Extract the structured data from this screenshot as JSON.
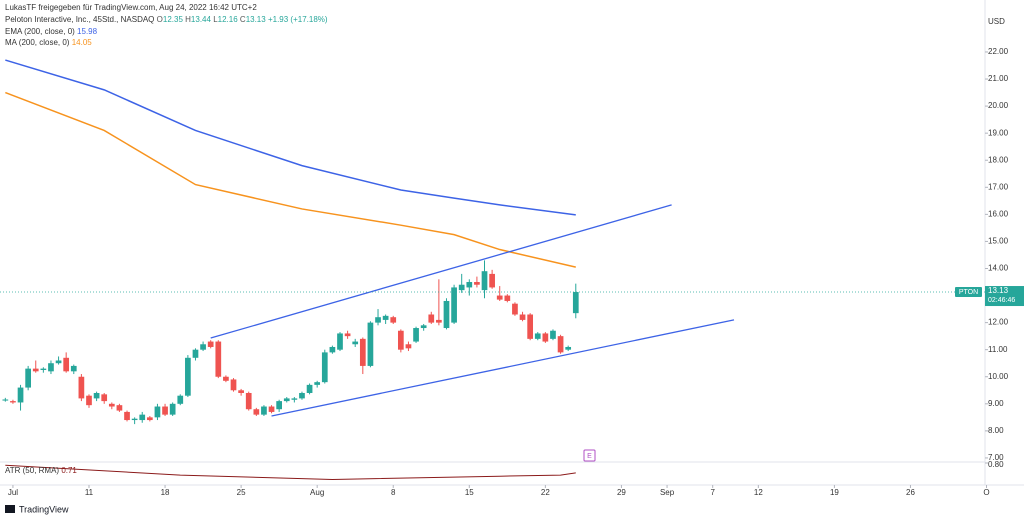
{
  "header": {
    "publisher": "LukasTF freigegeben für TradingView.com, Aug 24, 2022 16:42 UTC+2",
    "symbol": "Peloton Interactive, Inc., 45Std., NASDAQ",
    "ohlc_labels": [
      "O",
      "H",
      "L",
      "C"
    ],
    "change": "+1.93 (+17.18%)",
    "currency": "USD",
    "ticker": "PTON",
    "countdown": "02:46:46",
    "event_marker": "E",
    "brand": "TradingView"
  },
  "chart_data": {
    "type": "candlestick",
    "x": [
      -0.5,
      0,
      0.5,
      1,
      1.5,
      2,
      2.5,
      3,
      3.5,
      4,
      4.5,
      5,
      5.5,
      6,
      6.5,
      7,
      7.5,
      8,
      8.5,
      9,
      9.5,
      10,
      10.5,
      11,
      11.5,
      12,
      12.5,
      13,
      13.5,
      14,
      14.5,
      15,
      15.5,
      16,
      16.5,
      17,
      17.5,
      18,
      18.5,
      19,
      19.5,
      20,
      20.5,
      21,
      21.5,
      22,
      22.5,
      23,
      23.5,
      24,
      24.5,
      25,
      25.5,
      26,
      26.5,
      27,
      27.5,
      28,
      28.5,
      29,
      29.5,
      30,
      30.5,
      31,
      31.5,
      32,
      32.5,
      33,
      33.5,
      34,
      34.5,
      35,
      35.5,
      36,
      36.5,
      37
    ],
    "open": [
      9.12,
      9.1,
      9.05,
      9.6,
      10.3,
      10.25,
      10.2,
      10.5,
      10.7,
      10.2,
      10.0,
      9.3,
      9.2,
      9.35,
      9.0,
      8.95,
      8.7,
      8.4,
      8.4,
      8.5,
      8.5,
      8.9,
      8.6,
      9.0,
      9.3,
      10.7,
      11.0,
      11.3,
      11.3,
      10.0,
      9.9,
      9.5,
      9.4,
      8.8,
      8.6,
      8.9,
      8.8,
      9.1,
      9.15,
      9.2,
      9.4,
      9.7,
      9.8,
      10.9,
      11.0,
      11.6,
      11.2,
      11.4,
      10.4,
      12.0,
      12.1,
      12.2,
      11.7,
      11.2,
      11.3,
      11.8,
      12.3,
      12.1,
      11.8,
      12.0,
      13.2,
      13.3,
      13.5,
      13.2,
      13.8,
      13.0,
      13.0,
      12.7,
      12.3,
      12.3,
      11.4,
      11.6,
      11.4,
      11.5,
      11.0,
      12.35
    ],
    "high": [
      9.22,
      9.15,
      9.7,
      10.4,
      10.6,
      10.35,
      10.6,
      10.75,
      10.9,
      10.45,
      10.1,
      9.35,
      9.45,
      9.4,
      9.05,
      9.0,
      8.75,
      8.5,
      8.7,
      8.55,
      9.0,
      9.0,
      9.05,
      9.35,
      10.8,
      11.05,
      11.3,
      11.35,
      11.35,
      10.05,
      9.95,
      9.55,
      9.45,
      8.85,
      8.95,
      8.95,
      9.15,
      9.25,
      9.25,
      9.45,
      9.75,
      9.85,
      11.0,
      11.15,
      11.65,
      11.7,
      11.4,
      11.45,
      12.05,
      12.5,
      12.3,
      12.25,
      11.75,
      11.3,
      11.85,
      11.95,
      12.4,
      13.6,
      12.9,
      13.4,
      13.8,
      13.6,
      13.7,
      14.3,
      13.95,
      13.35,
      13.05,
      12.75,
      12.4,
      12.35,
      11.65,
      11.65,
      11.75,
      11.55,
      11.15,
      13.44
    ],
    "low": [
      9.08,
      9.0,
      8.75,
      9.5,
      10.15,
      10.15,
      10.1,
      10.45,
      10.15,
      10.1,
      9.1,
      8.85,
      9.1,
      9.0,
      8.8,
      8.7,
      8.35,
      8.25,
      8.3,
      8.35,
      8.4,
      8.55,
      8.55,
      8.95,
      9.25,
      10.6,
      10.95,
      11.05,
      9.95,
      9.8,
      9.45,
      9.3,
      8.75,
      8.55,
      8.55,
      8.65,
      8.7,
      9.05,
      9.05,
      9.15,
      9.35,
      9.6,
      9.75,
      10.85,
      10.95,
      11.4,
      11.1,
      10.1,
      10.35,
      11.9,
      11.95,
      11.95,
      10.9,
      10.95,
      11.25,
      11.7,
      11.95,
      11.9,
      11.75,
      11.95,
      13.1,
      13.0,
      13.3,
      12.9,
      13.25,
      12.8,
      12.75,
      12.25,
      12.05,
      11.35,
      11.35,
      11.25,
      11.35,
      10.85,
      10.95,
      12.16
    ],
    "close": [
      9.16,
      9.05,
      9.6,
      10.3,
      10.2,
      10.3,
      10.5,
      10.6,
      10.2,
      10.4,
      9.2,
      8.95,
      9.4,
      9.1,
      8.9,
      8.75,
      8.4,
      8.45,
      8.6,
      8.4,
      8.9,
      8.6,
      9.0,
      9.3,
      10.7,
      11.0,
      11.2,
      11.1,
      10.0,
      9.85,
      9.5,
      9.4,
      8.8,
      8.6,
      8.9,
      8.7,
      9.1,
      9.2,
      9.2,
      9.4,
      9.7,
      9.8,
      10.9,
      11.1,
      11.6,
      11.5,
      11.3,
      10.4,
      12.0,
      12.2,
      12.25,
      12.0,
      11.0,
      11.05,
      11.8,
      11.9,
      12.0,
      12.0,
      12.8,
      13.3,
      13.4,
      13.5,
      13.4,
      13.9,
      13.3,
      12.85,
      12.8,
      12.3,
      12.1,
      11.4,
      11.6,
      11.3,
      11.7,
      10.9,
      11.1,
      13.13
    ],
    "up_color": "#26a69a",
    "down_color": "#ef5350",
    "series": [
      {
        "name": "EMA (200, close, 0)",
        "color": "#3d63e6",
        "x": [
          -0.5,
          6,
          12,
          19,
          25.5,
          29,
          32,
          37
        ],
        "values": [
          21.7,
          20.6,
          19.1,
          17.8,
          16.9,
          16.6,
          16.35,
          15.98
        ]
      },
      {
        "name": "MA (200, close, 0)",
        "color": "#f7931e",
        "x": [
          -0.5,
          6,
          12,
          19,
          25.5,
          29,
          32,
          37
        ],
        "values": [
          20.5,
          19.1,
          17.1,
          16.2,
          15.6,
          15.25,
          14.7,
          14.05
        ]
      }
    ],
    "trendlines": [
      {
        "color": "#3d63e6",
        "x": [
          13,
          43.3
        ],
        "values": [
          11.43,
          16.35
        ]
      },
      {
        "color": "#3d63e6",
        "x": [
          17,
          47.4
        ],
        "values": [
          8.55,
          12.1
        ]
      }
    ],
    "xlim": [
      -0.85,
      63.9
    ],
    "ylim": [
      6.85,
      23.92
    ],
    "xticks": [
      {
        "value": 0,
        "label": "Jul"
      },
      {
        "value": 5,
        "label": "11"
      },
      {
        "value": 10,
        "label": "18"
      },
      {
        "value": 15,
        "label": "25"
      },
      {
        "value": 20,
        "label": "Aug"
      },
      {
        "value": 25,
        "label": "8"
      },
      {
        "value": 30,
        "label": "15"
      },
      {
        "value": 35,
        "label": "22"
      },
      {
        "value": 40,
        "label": "29"
      },
      {
        "value": 43,
        "label": "Sep"
      },
      {
        "value": 46,
        "label": "7"
      },
      {
        "value": 49,
        "label": "12"
      },
      {
        "value": 54,
        "label": "19"
      },
      {
        "value": 59,
        "label": "26"
      },
      {
        "value": 64,
        "label": "O"
      }
    ],
    "yticks": [
      {
        "value": 7,
        "label": "7.00"
      },
      {
        "value": 8,
        "label": "8.00"
      },
      {
        "value": 9,
        "label": "9.00"
      },
      {
        "value": 10,
        "label": "10.00"
      },
      {
        "value": 11,
        "label": "11.00"
      },
      {
        "value": 12,
        "label": "12.00"
      },
      {
        "value": 13,
        "label": "13.00"
      },
      {
        "value": 14,
        "label": "14.00"
      },
      {
        "value": 15,
        "label": "15.00"
      },
      {
        "value": 16,
        "label": "16.00"
      },
      {
        "value": 17,
        "label": "17.00"
      },
      {
        "value": 18,
        "label": "18.00"
      },
      {
        "value": 19,
        "label": "19.00"
      },
      {
        "value": 20,
        "label": "20.00"
      },
      {
        "value": 21,
        "label": "21.00"
      },
      {
        "value": 22,
        "label": "22.00"
      }
    ],
    "atr": {
      "name": "ATR (50, RMA)",
      "color": "#8b1a1a",
      "x": [
        -0.5,
        11,
        21,
        32,
        36,
        37
      ],
      "values": [
        0.78,
        0.69,
        0.65,
        0.68,
        0.69,
        0.71
      ],
      "ylim": [
        0.6,
        0.809
      ],
      "yticks": [
        {
          "value": 0.8,
          "label": "0.80"
        }
      ]
    }
  }
}
